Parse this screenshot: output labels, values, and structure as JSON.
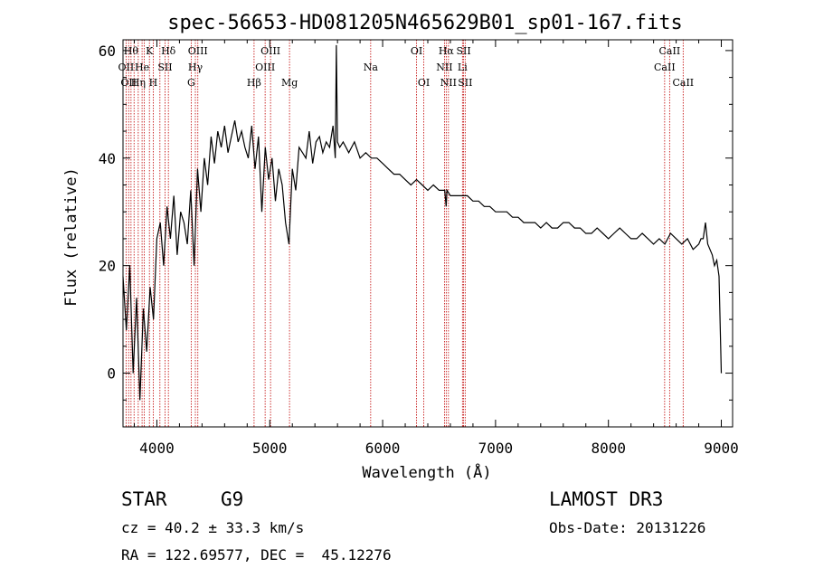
{
  "chart_data": {
    "type": "line",
    "title": "spec-56653-HD081205N465629B01_sp01-167.fits",
    "xlabel": "Wavelength (Å)",
    "ylabel": "Flux (relative)",
    "xlim": [
      3700,
      9100
    ],
    "ylim": [
      -10,
      62
    ],
    "xticks": [
      4000,
      5000,
      6000,
      7000,
      8000,
      9000
    ],
    "yticks": [
      0,
      20,
      40,
      60
    ],
    "series": [
      {
        "name": "flux",
        "x": [
          3700,
          3730,
          3760,
          3790,
          3820,
          3850,
          3880,
          3910,
          3940,
          3970,
          4000,
          4030,
          4060,
          4090,
          4120,
          4150,
          4180,
          4210,
          4240,
          4270,
          4300,
          4330,
          4360,
          4390,
          4420,
          4450,
          4480,
          4510,
          4540,
          4570,
          4600,
          4630,
          4660,
          4690,
          4720,
          4750,
          4780,
          4810,
          4840,
          4870,
          4900,
          4930,
          4960,
          4990,
          5020,
          5050,
          5080,
          5110,
          5140,
          5170,
          5200,
          5230,
          5260,
          5290,
          5320,
          5350,
          5380,
          5410,
          5440,
          5470,
          5500,
          5530,
          5560,
          5580,
          5590,
          5600,
          5620,
          5650,
          5700,
          5750,
          5800,
          5850,
          5900,
          5950,
          6000,
          6050,
          6100,
          6150,
          6200,
          6250,
          6300,
          6350,
          6400,
          6450,
          6500,
          6550,
          6563,
          6570,
          6600,
          6650,
          6700,
          6750,
          6800,
          6850,
          6900,
          6950,
          7000,
          7050,
          7100,
          7150,
          7200,
          7250,
          7300,
          7350,
          7400,
          7450,
          7500,
          7550,
          7600,
          7650,
          7700,
          7750,
          7800,
          7850,
          7900,
          7950,
          8000,
          8050,
          8100,
          8150,
          8200,
          8250,
          8300,
          8350,
          8400,
          8450,
          8500,
          8550,
          8600,
          8650,
          8700,
          8750,
          8800,
          8820,
          8840,
          8860,
          8880,
          8900,
          8920,
          8940,
          8960,
          8980,
          9000
        ],
        "y": [
          18,
          8,
          20,
          0,
          14,
          -5,
          12,
          4,
          16,
          10,
          25,
          28,
          20,
          31,
          25,
          33,
          22,
          30,
          28,
          24,
          34,
          20,
          38,
          30,
          40,
          35,
          44,
          39,
          45,
          42,
          46,
          41,
          44,
          47,
          43,
          45,
          42,
          40,
          46,
          38,
          44,
          30,
          42,
          36,
          40,
          32,
          38,
          35,
          28,
          24,
          38,
          34,
          42,
          41,
          40,
          45,
          39,
          43,
          44,
          41,
          43,
          42,
          46,
          40,
          61,
          43,
          42,
          43,
          41,
          43,
          40,
          41,
          40,
          40,
          39,
          38,
          37,
          37,
          36,
          35,
          36,
          35,
          34,
          35,
          34,
          34,
          31,
          34,
          33,
          33,
          33,
          33,
          32,
          32,
          31,
          31,
          30,
          30,
          30,
          29,
          29,
          28,
          28,
          28,
          27,
          28,
          27,
          27,
          28,
          28,
          27,
          27,
          26,
          26,
          27,
          26,
          25,
          26,
          27,
          26,
          25,
          25,
          26,
          25,
          24,
          25,
          24,
          26,
          25,
          24,
          25,
          23,
          24,
          25,
          25,
          28,
          24,
          23,
          22,
          20,
          21,
          18,
          0
        ]
      }
    ],
    "line_markers": [
      {
        "wl": 3727,
        "label": "OII",
        "row": 2
      },
      {
        "wl": 3750,
        "label": "OII",
        "row": 3
      },
      {
        "wl": 3771,
        "label": "Hθ",
        "row": 1
      },
      {
        "wl": 3798,
        "label": "",
        "row": 0
      },
      {
        "wl": 3835,
        "label": "Hη",
        "row": 3
      },
      {
        "wl": 3869,
        "label": "He",
        "row": 2
      },
      {
        "wl": 3889,
        "label": "",
        "row": 0
      },
      {
        "wl": 3934,
        "label": "K",
        "row": 1
      },
      {
        "wl": 3968,
        "label": "H",
        "row": 3
      },
      {
        "wl": 4027,
        "label": "",
        "row": 0
      },
      {
        "wl": 4072,
        "label": "SII",
        "row": 2
      },
      {
        "wl": 4102,
        "label": "Hδ",
        "row": 1
      },
      {
        "wl": 4304,
        "label": "G",
        "row": 3
      },
      {
        "wl": 4341,
        "label": "Hγ",
        "row": 2
      },
      {
        "wl": 4363,
        "label": "OIII",
        "row": 1
      },
      {
        "wl": 4861,
        "label": "Hβ",
        "row": 3
      },
      {
        "wl": 4959,
        "label": "OIII",
        "row": 2
      },
      {
        "wl": 5007,
        "label": "OIII",
        "row": 1
      },
      {
        "wl": 5175,
        "label": "Mg",
        "row": 3
      },
      {
        "wl": 5894,
        "label": "Na",
        "row": 2
      },
      {
        "wl": 6300,
        "label": "OI",
        "row": 1
      },
      {
        "wl": 6364,
        "label": "OI",
        "row": 3
      },
      {
        "wl": 6548,
        "label": "NII",
        "row": 2
      },
      {
        "wl": 6563,
        "label": "Hα",
        "row": 1
      },
      {
        "wl": 6583,
        "label": "NII",
        "row": 3
      },
      {
        "wl": 6707,
        "label": "Li",
        "row": 2
      },
      {
        "wl": 6717,
        "label": "SII",
        "row": 1
      },
      {
        "wl": 6731,
        "label": "SII",
        "row": 3
      },
      {
        "wl": 8498,
        "label": "CaII",
        "row": 2
      },
      {
        "wl": 8542,
        "label": "CaII",
        "row": 1
      },
      {
        "wl": 8662,
        "label": "CaII",
        "row": 3
      }
    ],
    "grid": false
  },
  "info": {
    "object_class": "STAR",
    "subclass": "G9",
    "survey": "LAMOST DR3",
    "cz": "cz = 40.2 ± 33.3 km/s",
    "obs_date": "Obs-Date: 20131226",
    "coords": "RA = 122.69577, DEC =  45.12276"
  },
  "colors": {
    "spectrum": "#000000",
    "marker_line": "#c00000",
    "axes": "#000000"
  }
}
